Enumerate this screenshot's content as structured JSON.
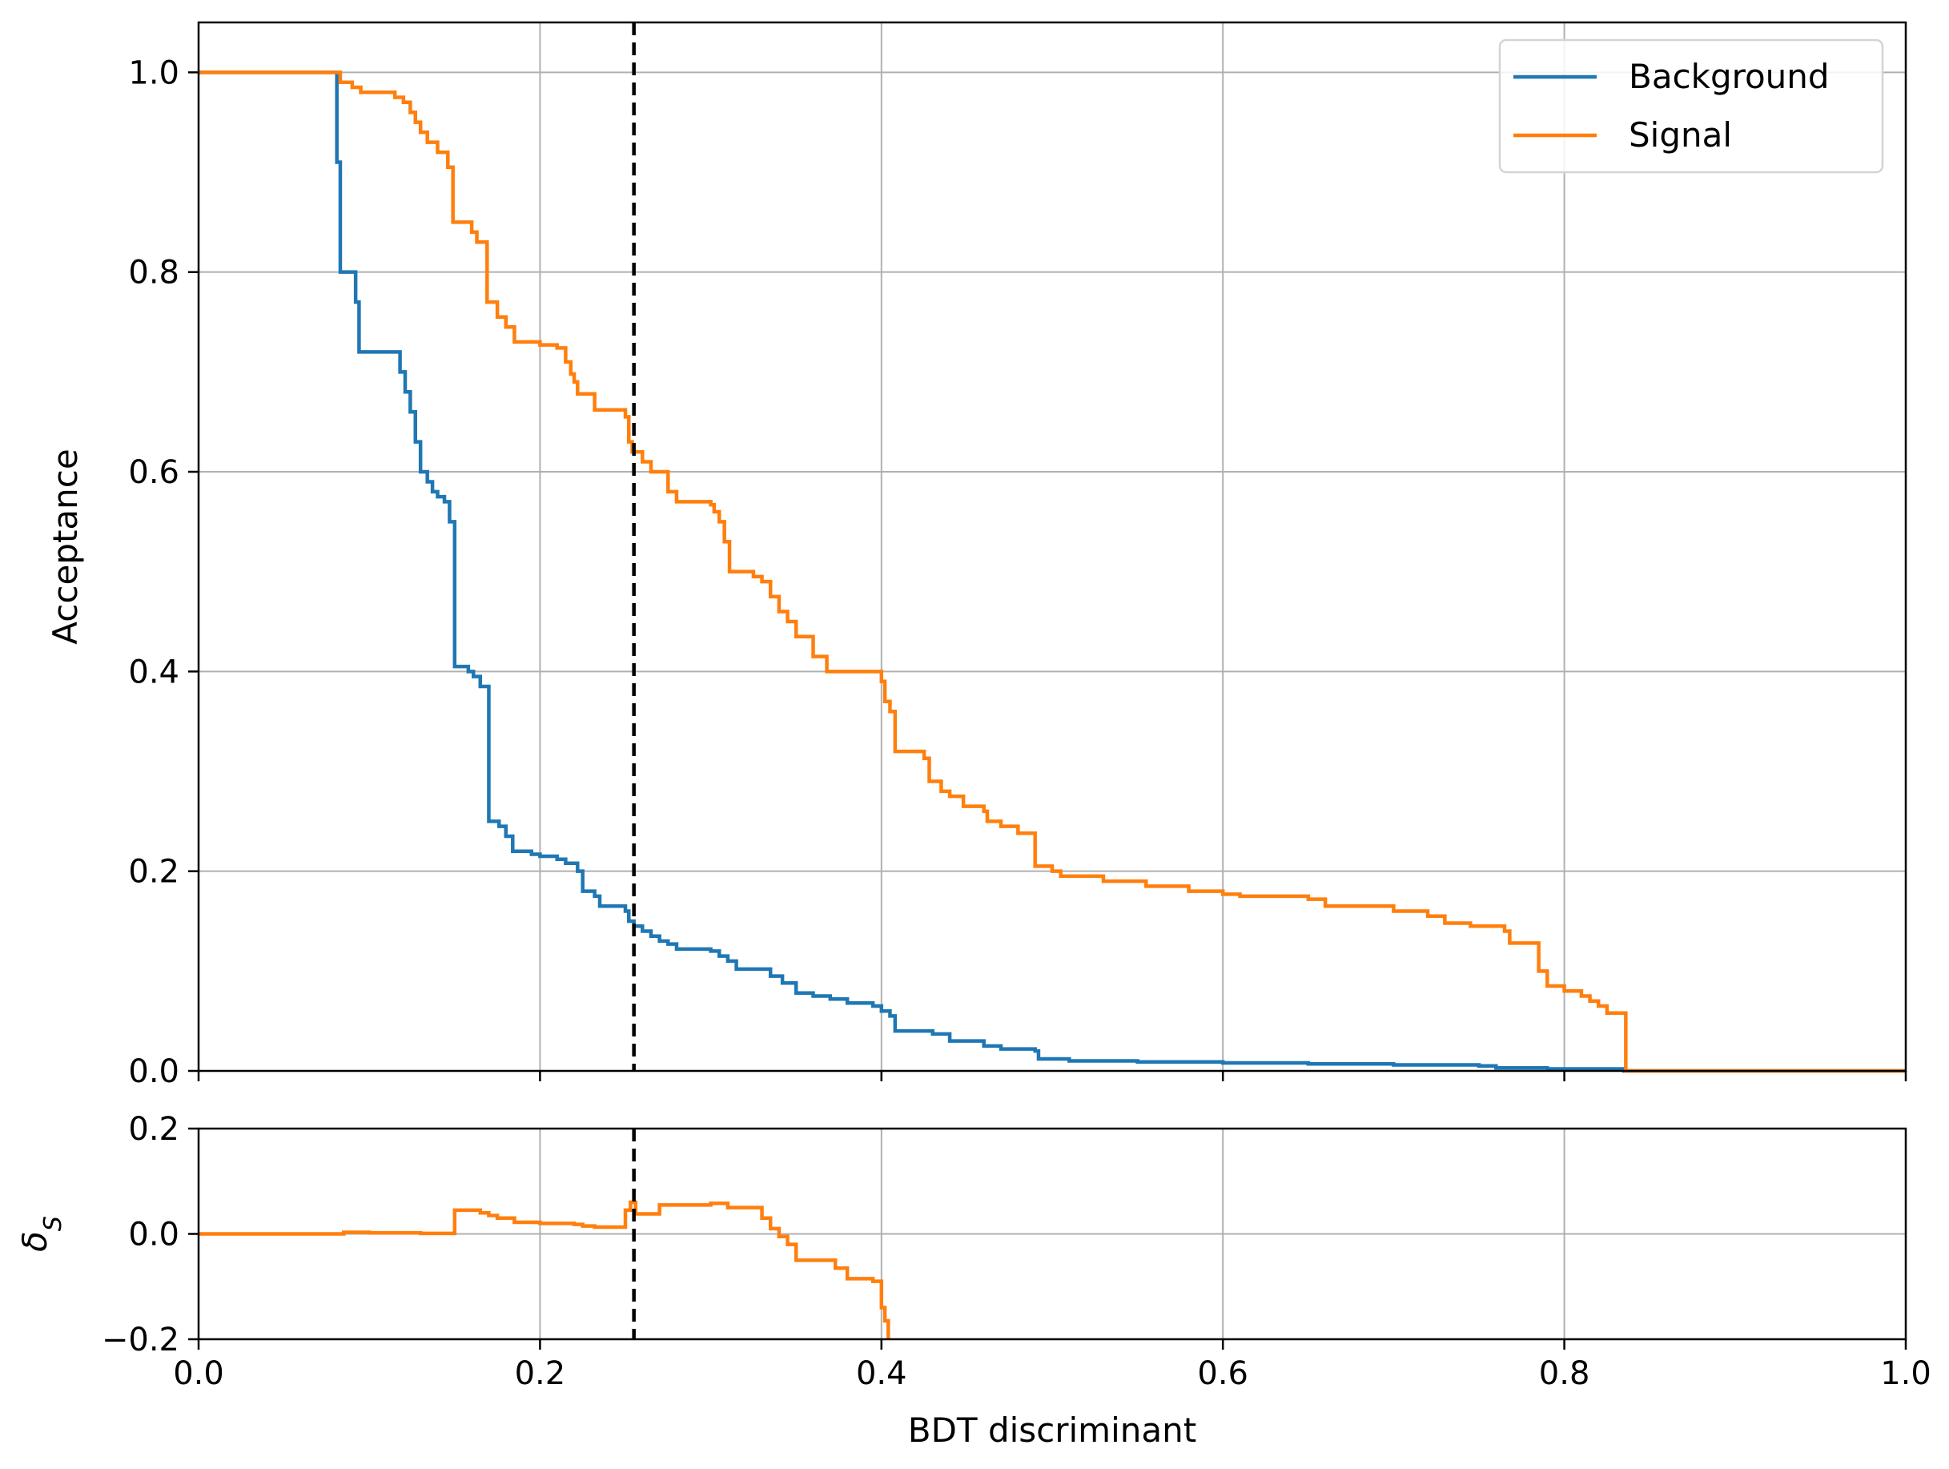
{
  "chart_data": [
    {
      "type": "line",
      "panel": "main",
      "xlabel": "",
      "ylabel": "Acceptance",
      "xlim": [
        0,
        1
      ],
      "ylim": [
        0,
        1.05
      ],
      "xticks": [
        "0.0",
        "0.2",
        "0.4",
        "0.6",
        "0.8",
        "1.0"
      ],
      "yticks": [
        "0.0",
        "0.2",
        "0.4",
        "0.6",
        "0.8",
        "1.0"
      ],
      "xtick_labels_visible": false,
      "grid": true,
      "legend_position": "top-right",
      "cut_line": {
        "x": 0.255,
        "style": "dashed",
        "color": "#000000"
      },
      "series": [
        {
          "name": "Background",
          "color": "#1f77b4",
          "drawstyle": "steps-post",
          "points": [
            [
              0.0,
              1.0
            ],
            [
              0.08,
              1.0
            ],
            [
              0.081,
              0.91
            ],
            [
              0.083,
              0.8
            ],
            [
              0.092,
              0.77
            ],
            [
              0.094,
              0.72
            ],
            [
              0.115,
              0.72
            ],
            [
              0.118,
              0.7
            ],
            [
              0.121,
              0.68
            ],
            [
              0.124,
              0.66
            ],
            [
              0.127,
              0.63
            ],
            [
              0.13,
              0.6
            ],
            [
              0.134,
              0.59
            ],
            [
              0.137,
              0.58
            ],
            [
              0.14,
              0.575
            ],
            [
              0.144,
              0.57
            ],
            [
              0.147,
              0.55
            ],
            [
              0.15,
              0.405
            ],
            [
              0.158,
              0.4
            ],
            [
              0.161,
              0.395
            ],
            [
              0.165,
              0.385
            ],
            [
              0.17,
              0.25
            ],
            [
              0.176,
              0.245
            ],
            [
              0.18,
              0.235
            ],
            [
              0.184,
              0.22
            ],
            [
              0.195,
              0.217
            ],
            [
              0.2,
              0.215
            ],
            [
              0.21,
              0.212
            ],
            [
              0.215,
              0.208
            ],
            [
              0.222,
              0.2
            ],
            [
              0.225,
              0.18
            ],
            [
              0.232,
              0.175
            ],
            [
              0.235,
              0.165
            ],
            [
              0.25,
              0.16
            ],
            [
              0.252,
              0.15
            ],
            [
              0.255,
              0.145
            ],
            [
              0.26,
              0.14
            ],
            [
              0.265,
              0.135
            ],
            [
              0.27,
              0.13
            ],
            [
              0.275,
              0.127
            ],
            [
              0.28,
              0.122
            ],
            [
              0.3,
              0.12
            ],
            [
              0.305,
              0.115
            ],
            [
              0.31,
              0.11
            ],
            [
              0.315,
              0.102
            ],
            [
              0.335,
              0.095
            ],
            [
              0.342,
              0.088
            ],
            [
              0.35,
              0.078
            ],
            [
              0.36,
              0.075
            ],
            [
              0.37,
              0.072
            ],
            [
              0.38,
              0.068
            ],
            [
              0.395,
              0.065
            ],
            [
              0.4,
              0.06
            ],
            [
              0.405,
              0.055
            ],
            [
              0.408,
              0.04
            ],
            [
              0.43,
              0.037
            ],
            [
              0.44,
              0.03
            ],
            [
              0.46,
              0.025
            ],
            [
              0.47,
              0.022
            ],
            [
              0.49,
              0.02
            ],
            [
              0.492,
              0.012
            ],
            [
              0.51,
              0.01
            ],
            [
              0.55,
              0.009
            ],
            [
              0.6,
              0.008
            ],
            [
              0.65,
              0.007
            ],
            [
              0.7,
              0.006
            ],
            [
              0.75,
              0.005
            ],
            [
              0.76,
              0.003
            ],
            [
              0.79,
              0.002
            ],
            [
              0.835,
              0.0
            ],
            [
              1.0,
              0.0
            ]
          ]
        },
        {
          "name": "Signal",
          "color": "#ff7f0e",
          "drawstyle": "steps-post",
          "points": [
            [
              0.0,
              1.0
            ],
            [
              0.082,
              1.0
            ],
            [
              0.083,
              0.99
            ],
            [
              0.09,
              0.985
            ],
            [
              0.095,
              0.98
            ],
            [
              0.115,
              0.975
            ],
            [
              0.12,
              0.97
            ],
            [
              0.124,
              0.96
            ],
            [
              0.127,
              0.95
            ],
            [
              0.13,
              0.94
            ],
            [
              0.134,
              0.93
            ],
            [
              0.14,
              0.92
            ],
            [
              0.146,
              0.905
            ],
            [
              0.149,
              0.85
            ],
            [
              0.16,
              0.84
            ],
            [
              0.163,
              0.83
            ],
            [
              0.169,
              0.77
            ],
            [
              0.175,
              0.755
            ],
            [
              0.18,
              0.745
            ],
            [
              0.185,
              0.73
            ],
            [
              0.2,
              0.727
            ],
            [
              0.21,
              0.724
            ],
            [
              0.215,
              0.71
            ],
            [
              0.218,
              0.698
            ],
            [
              0.22,
              0.69
            ],
            [
              0.222,
              0.678
            ],
            [
              0.232,
              0.662
            ],
            [
              0.25,
              0.655
            ],
            [
              0.252,
              0.63
            ],
            [
              0.254,
              0.62
            ],
            [
              0.26,
              0.61
            ],
            [
              0.265,
              0.6
            ],
            [
              0.275,
              0.58
            ],
            [
              0.28,
              0.57
            ],
            [
              0.3,
              0.567
            ],
            [
              0.302,
              0.56
            ],
            [
              0.305,
              0.55
            ],
            [
              0.308,
              0.53
            ],
            [
              0.311,
              0.5
            ],
            [
              0.325,
              0.495
            ],
            [
              0.33,
              0.49
            ],
            [
              0.335,
              0.475
            ],
            [
              0.34,
              0.46
            ],
            [
              0.345,
              0.45
            ],
            [
              0.35,
              0.435
            ],
            [
              0.36,
              0.415
            ],
            [
              0.368,
              0.4
            ],
            [
              0.4,
              0.39
            ],
            [
              0.402,
              0.37
            ],
            [
              0.405,
              0.36
            ],
            [
              0.408,
              0.32
            ],
            [
              0.425,
              0.313
            ],
            [
              0.428,
              0.29
            ],
            [
              0.435,
              0.28
            ],
            [
              0.44,
              0.275
            ],
            [
              0.448,
              0.265
            ],
            [
              0.46,
              0.26
            ],
            [
              0.462,
              0.25
            ],
            [
              0.47,
              0.245
            ],
            [
              0.48,
              0.238
            ],
            [
              0.49,
              0.205
            ],
            [
              0.5,
              0.2
            ],
            [
              0.505,
              0.195
            ],
            [
              0.53,
              0.19
            ],
            [
              0.555,
              0.185
            ],
            [
              0.58,
              0.18
            ],
            [
              0.6,
              0.177
            ],
            [
              0.61,
              0.175
            ],
            [
              0.65,
              0.172
            ],
            [
              0.66,
              0.165
            ],
            [
              0.7,
              0.16
            ],
            [
              0.72,
              0.155
            ],
            [
              0.73,
              0.148
            ],
            [
              0.745,
              0.145
            ],
            [
              0.765,
              0.14
            ],
            [
              0.768,
              0.128
            ],
            [
              0.785,
              0.1
            ],
            [
              0.79,
              0.085
            ],
            [
              0.8,
              0.08
            ],
            [
              0.81,
              0.075
            ],
            [
              0.815,
              0.07
            ],
            [
              0.82,
              0.065
            ],
            [
              0.825,
              0.058
            ],
            [
              0.836,
              0.0
            ],
            [
              1.0,
              0.0
            ]
          ]
        }
      ]
    },
    {
      "type": "line",
      "panel": "ratio",
      "xlabel": "BDT discriminant",
      "ylabel": "δS",
      "xlim": [
        0,
        1
      ],
      "ylim": [
        -0.2,
        0.2
      ],
      "xticks": [
        "0.0",
        "0.2",
        "0.4",
        "0.6",
        "0.8",
        "1.0"
      ],
      "yticks": [
        "−0.2",
        "0.0",
        "0.2"
      ],
      "grid": true,
      "cut_line": {
        "x": 0.255,
        "style": "dashed",
        "color": "#000000"
      },
      "series": [
        {
          "color": "#ff7f0e",
          "drawstyle": "steps-post",
          "points": [
            [
              0.0,
              0.0
            ],
            [
              0.082,
              0.0
            ],
            [
              0.085,
              0.003
            ],
            [
              0.1,
              0.002
            ],
            [
              0.13,
              0.001
            ],
            [
              0.15,
              0.045
            ],
            [
              0.165,
              0.04
            ],
            [
              0.17,
              0.035
            ],
            [
              0.175,
              0.03
            ],
            [
              0.185,
              0.022
            ],
            [
              0.2,
              0.02
            ],
            [
              0.22,
              0.018
            ],
            [
              0.225,
              0.015
            ],
            [
              0.232,
              0.013
            ],
            [
              0.25,
              0.045
            ],
            [
              0.253,
              0.06
            ],
            [
              0.256,
              0.038
            ],
            [
              0.27,
              0.055
            ],
            [
              0.3,
              0.058
            ],
            [
              0.31,
              0.05
            ],
            [
              0.33,
              0.03
            ],
            [
              0.335,
              0.01
            ],
            [
              0.34,
              -0.005
            ],
            [
              0.345,
              -0.02
            ],
            [
              0.35,
              -0.05
            ],
            [
              0.37,
              -0.05
            ],
            [
              0.373,
              -0.065
            ],
            [
              0.38,
              -0.085
            ],
            [
              0.395,
              -0.09
            ],
            [
              0.4,
              -0.14
            ],
            [
              0.402,
              -0.165
            ],
            [
              0.404,
              -0.2
            ]
          ]
        }
      ]
    }
  ],
  "legend": {
    "items": [
      {
        "label": "Background",
        "color": "#1f77b4"
      },
      {
        "label": "Signal",
        "color": "#ff7f0e"
      }
    ]
  }
}
